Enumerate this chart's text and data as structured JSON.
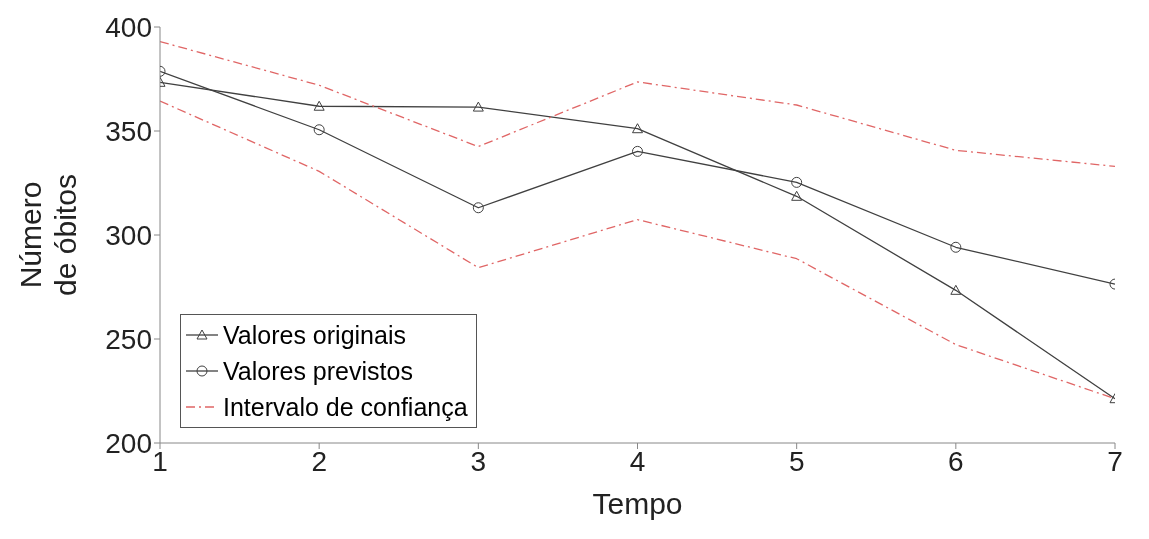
{
  "chart_data": {
    "type": "line",
    "xlabel": "Tempo",
    "ylabel": "Número\nde óbitos",
    "x": [
      1,
      2,
      3,
      4,
      5,
      6,
      7
    ],
    "xlim": [
      1,
      7
    ],
    "xticks": [
      1,
      2,
      3,
      4,
      5,
      6,
      7
    ],
    "ylim": [
      200,
      400
    ],
    "yticks": [
      200,
      250,
      300,
      350,
      400
    ],
    "grid": false,
    "legend": "bottom left",
    "series": [
      {
        "name": "Valores originais",
        "color": "#404040",
        "marker": "triangle",
        "line_style": "solid",
        "values": [
          373.4,
          361.9,
          361.5,
          351.1,
          318.6,
          273.4,
          221.3
        ]
      },
      {
        "name": "Valores previstos",
        "color": "#404040",
        "marker": "circle",
        "line_style": "solid",
        "values": [
          378.7,
          350.6,
          313.1,
          340.2,
          325.3,
          294.1,
          276.4
        ]
      },
      {
        "name": "Intervalo de confiança",
        "color": "#e06666",
        "marker": "none",
        "line_style": "dashed",
        "values": [
          393,
          372,
          342.5,
          373.6,
          362.5,
          340.7,
          333
        ]
      },
      {
        "color": "#e06666",
        "marker": "none",
        "line_style": "dashed",
        "values": [
          364.4,
          330.6,
          284.3,
          307.4,
          288.6,
          247.3,
          221.3
        ]
      }
    ]
  }
}
